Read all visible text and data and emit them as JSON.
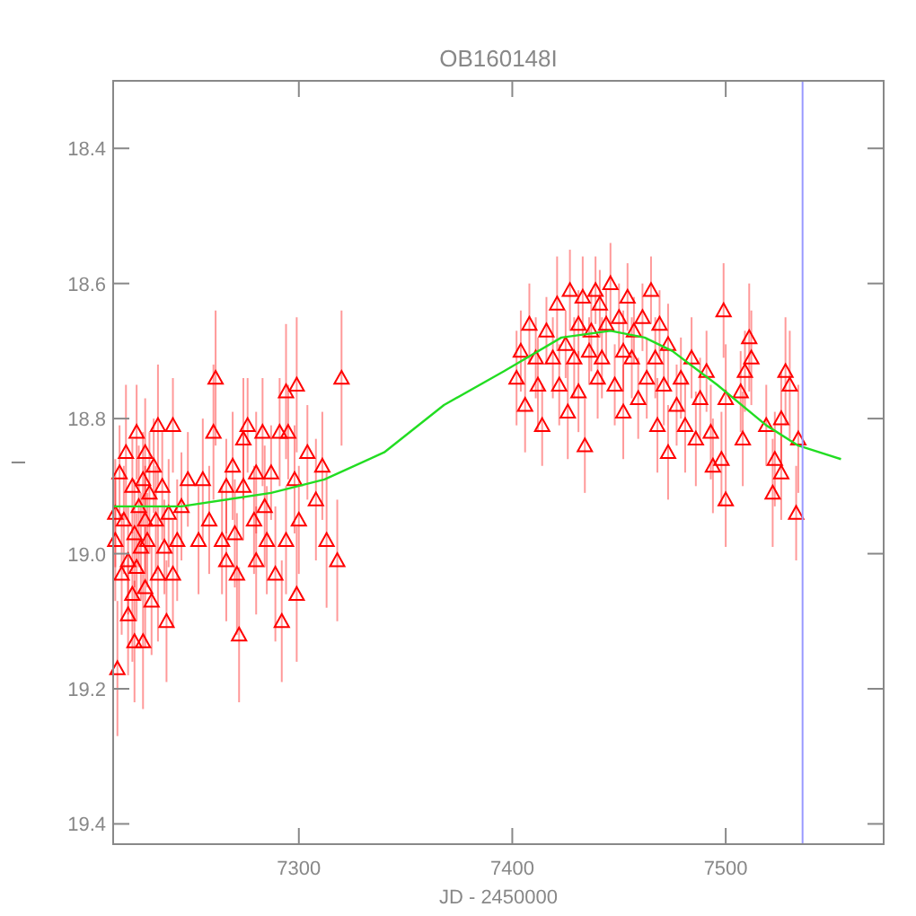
{
  "chart_data": {
    "type": "scatter",
    "title": "OB160148I",
    "xlabel": "JD - 2450000",
    "ylabel": "I",
    "xlim": [
      7213,
      7574
    ],
    "xticks": [
      7300,
      7400,
      7500
    ],
    "ylim": [
      19.43,
      18.3
    ],
    "yticks": [
      18.4,
      18.6,
      18.8,
      {
        "value": 19.0,
        "label": "19.0"
      },
      19.2,
      19.4
    ],
    "grid": false,
    "ref_lines": [
      {
        "axis": "x",
        "value": 7536,
        "color": "#9999ff"
      }
    ],
    "series": [
      {
        "color": "#ff0000",
        "marker": "triangle",
        "x": [
          7214,
          7214,
          7215,
          7216,
          7217,
          7218,
          7219,
          7220,
          7220,
          7222,
          7222,
          7223,
          7223,
          7224,
          7224,
          7225,
          7226,
          7227,
          7227,
          7228,
          7228,
          7228,
          7229,
          7230,
          7231,
          7232,
          7233,
          7234,
          7234,
          7236,
          7237,
          7238,
          7239,
          7241,
          7241,
          7243,
          7245,
          7248,
          7253,
          7255,
          7258,
          7260,
          7261,
          7264,
          7266,
          7266,
          7269,
          7270,
          7272,
          7271,
          7274,
          7274,
          7276,
          7279,
          7280,
          7280,
          7283,
          7284,
          7285,
          7287,
          7289,
          7291,
          7292,
          7294,
          7294,
          7295,
          7298,
          7299,
          7299,
          7300,
          7304,
          7308,
          7311,
          7313,
          7318,
          7320,
          7402,
          7404,
          7406,
          7408,
          7411,
          7412,
          7414,
          7416,
          7419,
          7421,
          7422,
          7425,
          7426,
          7427,
          7429,
          7431,
          7431,
          7433,
          7434,
          7436,
          7437,
          7439,
          7440,
          7441,
          7442,
          7444,
          7446,
          7448,
          7450,
          7452,
          7452,
          7454,
          7456,
          7457,
          7459,
          7461,
          7463,
          7465,
          7467,
          7468,
          7469,
          7471,
          7473,
          7473,
          7477,
          7479,
          7481,
          7484,
          7486,
          7488,
          7491,
          7493,
          7494,
          7498,
          7499,
          7500,
          7500,
          7507,
          7508,
          7509,
          7511,
          7512,
          7519,
          7522,
          7523,
          7526,
          7526,
          7528,
          7530,
          7533,
          7534
        ],
        "values": [
          18.94,
          18.98,
          19.17,
          18.88,
          19.03,
          18.95,
          18.85,
          19.01,
          19.09,
          18.9,
          19.06,
          18.97,
          19.13,
          18.82,
          19.02,
          18.93,
          18.99,
          18.89,
          19.13,
          18.95,
          19.05,
          18.85,
          18.98,
          18.91,
          19.07,
          18.87,
          18.95,
          18.81,
          19.03,
          18.9,
          18.99,
          19.1,
          18.94,
          19.03,
          18.81,
          18.98,
          18.93,
          18.89,
          18.98,
          18.89,
          18.95,
          18.82,
          18.74,
          18.98,
          18.9,
          19.01,
          18.87,
          18.97,
          19.12,
          19.03,
          18.9,
          18.83,
          18.81,
          18.95,
          18.88,
          19.01,
          18.82,
          18.93,
          18.98,
          18.88,
          19.03,
          18.82,
          19.1,
          18.76,
          18.98,
          18.82,
          18.89,
          18.75,
          19.06,
          18.95,
          18.85,
          18.92,
          18.87,
          18.98,
          19.01,
          18.74,
          18.74,
          18.7,
          18.78,
          18.66,
          18.71,
          18.75,
          18.81,
          18.67,
          18.71,
          18.63,
          18.75,
          18.69,
          18.79,
          18.61,
          18.71,
          18.66,
          18.76,
          18.62,
          18.84,
          18.7,
          18.67,
          18.61,
          18.74,
          18.63,
          18.71,
          18.66,
          18.6,
          18.75,
          18.65,
          18.7,
          18.79,
          18.62,
          18.71,
          18.67,
          18.77,
          18.65,
          18.74,
          18.61,
          18.71,
          18.81,
          18.66,
          18.75,
          18.69,
          18.85,
          18.78,
          18.74,
          18.81,
          18.71,
          18.83,
          18.77,
          18.73,
          18.82,
          18.87,
          18.86,
          18.64,
          18.77,
          18.92,
          18.76,
          18.83,
          18.73,
          18.68,
          18.71,
          18.81,
          18.91,
          18.86,
          18.8,
          18.88,
          18.73,
          18.75,
          18.94,
          18.83
        ],
        "errors": [
          0.08,
          0.09,
          0.1,
          0.07,
          0.09,
          0.08,
          0.1,
          0.08,
          0.09,
          0.07,
          0.1,
          0.08,
          0.09,
          0.07,
          0.08,
          0.09,
          0.08,
          0.07,
          0.1,
          0.08,
          0.09,
          0.08,
          0.07,
          0.09,
          0.08,
          0.07,
          0.08,
          0.09,
          0.1,
          0.08,
          0.07,
          0.09,
          0.08,
          0.08,
          0.07,
          0.09,
          0.08,
          0.07,
          0.08,
          0.09,
          0.08,
          0.1,
          0.1,
          0.08,
          0.07,
          0.09,
          0.08,
          0.08,
          0.1,
          0.09,
          0.08,
          0.09,
          0.07,
          0.08,
          0.09,
          0.08,
          0.08,
          0.09,
          0.08,
          0.07,
          0.1,
          0.08,
          0.09,
          0.1,
          0.08,
          0.07,
          0.08,
          0.1,
          0.1,
          0.08,
          0.07,
          0.09,
          0.08,
          0.1,
          0.09,
          0.1,
          0.07,
          0.06,
          0.07,
          0.06,
          0.06,
          0.07,
          0.06,
          0.05,
          0.06,
          0.07,
          0.06,
          0.05,
          0.07,
          0.06,
          0.06,
          0.05,
          0.06,
          0.06,
          0.07,
          0.05,
          0.06,
          0.05,
          0.06,
          0.05,
          0.06,
          0.05,
          0.06,
          0.06,
          0.05,
          0.06,
          0.07,
          0.05,
          0.06,
          0.05,
          0.06,
          0.05,
          0.06,
          0.05,
          0.06,
          0.07,
          0.05,
          0.06,
          0.06,
          0.07,
          0.06,
          0.06,
          0.07,
          0.06,
          0.07,
          0.06,
          0.06,
          0.07,
          0.07,
          0.07,
          0.07,
          0.08,
          0.07,
          0.06,
          0.07,
          0.06,
          0.08,
          0.07,
          0.06,
          0.08,
          0.07,
          0.07,
          0.07,
          0.08,
          0.08,
          0.07,
          0.08
        ]
      },
      {
        "type": "line",
        "color": "#22dd22",
        "marker": "none",
        "line_style": "solid",
        "x": [
          7213,
          7245,
          7287,
          7312,
          7340,
          7368,
          7396,
          7423,
          7446,
          7462,
          7475,
          7496,
          7519,
          7534,
          7554
        ],
        "values": [
          18.93,
          18.93,
          18.91,
          18.89,
          18.85,
          18.78,
          18.73,
          18.68,
          18.67,
          18.68,
          18.7,
          18.75,
          18.81,
          18.84,
          18.86
        ]
      }
    ]
  }
}
